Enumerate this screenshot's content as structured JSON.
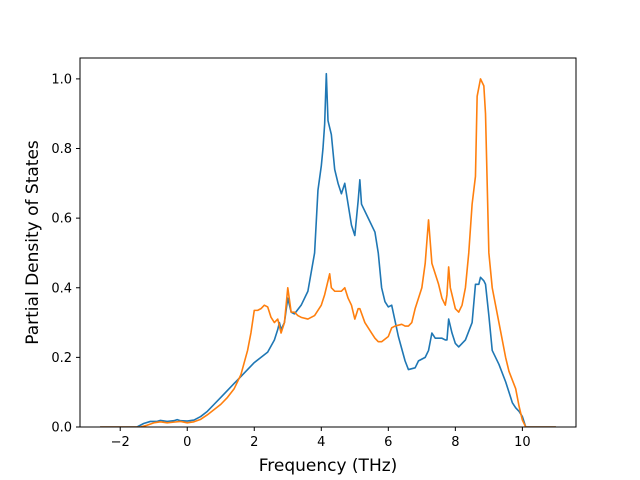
{
  "chart_data": {
    "type": "line",
    "title": "",
    "xlabel": "Frequency (THz)",
    "ylabel": "Partial Density of States",
    "xlim": [
      -3.2,
      11.6
    ],
    "ylim": [
      0,
      1.06
    ],
    "xticks": [
      -2,
      0,
      2,
      4,
      6,
      8,
      10
    ],
    "xtick_labels": [
      "−2",
      "0",
      "2",
      "4",
      "6",
      "8",
      "10"
    ],
    "yticks": [
      0.0,
      0.2,
      0.4,
      0.6,
      0.8,
      1.0
    ],
    "ytick_labels": [
      "0.0",
      "0.2",
      "0.4",
      "0.6",
      "0.8",
      "1.0"
    ],
    "grid": false,
    "legend": "none",
    "series": [
      {
        "color": "#1f77b4",
        "points": [
          [
            -2.6,
            0.0
          ],
          [
            -1.5,
            0.0
          ],
          [
            -1.3,
            0.01
          ],
          [
            -1.1,
            0.016
          ],
          [
            -0.9,
            0.016
          ],
          [
            -0.8,
            0.019
          ],
          [
            -0.6,
            0.016
          ],
          [
            -0.4,
            0.018
          ],
          [
            -0.3,
            0.021
          ],
          [
            -0.2,
            0.018
          ],
          [
            0.0,
            0.017
          ],
          [
            0.2,
            0.02
          ],
          [
            0.4,
            0.03
          ],
          [
            0.6,
            0.045
          ],
          [
            0.8,
            0.065
          ],
          [
            1.0,
            0.085
          ],
          [
            1.2,
            0.105
          ],
          [
            1.4,
            0.125
          ],
          [
            1.6,
            0.145
          ],
          [
            1.8,
            0.165
          ],
          [
            2.0,
            0.185
          ],
          [
            2.2,
            0.2
          ],
          [
            2.4,
            0.215
          ],
          [
            2.6,
            0.25
          ],
          [
            2.7,
            0.28
          ],
          [
            2.75,
            0.3
          ],
          [
            2.8,
            0.28
          ],
          [
            2.9,
            0.3
          ],
          [
            3.0,
            0.37
          ],
          [
            3.1,
            0.33
          ],
          [
            3.2,
            0.325
          ],
          [
            3.4,
            0.35
          ],
          [
            3.6,
            0.39
          ],
          [
            3.8,
            0.5
          ],
          [
            3.9,
            0.68
          ],
          [
            4.0,
            0.75
          ],
          [
            4.05,
            0.8
          ],
          [
            4.1,
            0.87
          ],
          [
            4.15,
            1.015
          ],
          [
            4.2,
            0.88
          ],
          [
            4.3,
            0.84
          ],
          [
            4.4,
            0.74
          ],
          [
            4.5,
            0.7
          ],
          [
            4.6,
            0.67
          ],
          [
            4.7,
            0.7
          ],
          [
            4.8,
            0.64
          ],
          [
            4.9,
            0.58
          ],
          [
            5.0,
            0.55
          ],
          [
            5.1,
            0.65
          ],
          [
            5.15,
            0.71
          ],
          [
            5.2,
            0.64
          ],
          [
            5.4,
            0.6
          ],
          [
            5.6,
            0.56
          ],
          [
            5.7,
            0.5
          ],
          [
            5.8,
            0.4
          ],
          [
            5.9,
            0.36
          ],
          [
            6.0,
            0.345
          ],
          [
            6.1,
            0.35
          ],
          [
            6.3,
            0.26
          ],
          [
            6.5,
            0.19
          ],
          [
            6.6,
            0.165
          ],
          [
            6.8,
            0.17
          ],
          [
            6.9,
            0.19
          ],
          [
            7.0,
            0.195
          ],
          [
            7.1,
            0.2
          ],
          [
            7.2,
            0.22
          ],
          [
            7.3,
            0.27
          ],
          [
            7.4,
            0.255
          ],
          [
            7.6,
            0.255
          ],
          [
            7.7,
            0.25
          ],
          [
            7.75,
            0.25
          ],
          [
            7.8,
            0.31
          ],
          [
            7.9,
            0.27
          ],
          [
            8.0,
            0.24
          ],
          [
            8.1,
            0.23
          ],
          [
            8.3,
            0.25
          ],
          [
            8.5,
            0.3
          ],
          [
            8.6,
            0.41
          ],
          [
            8.7,
            0.41
          ],
          [
            8.75,
            0.43
          ],
          [
            8.85,
            0.42
          ],
          [
            8.9,
            0.41
          ],
          [
            9.0,
            0.32
          ],
          [
            9.1,
            0.22
          ],
          [
            9.3,
            0.18
          ],
          [
            9.5,
            0.13
          ],
          [
            9.7,
            0.07
          ],
          [
            9.8,
            0.055
          ],
          [
            9.9,
            0.045
          ],
          [
            10.0,
            0.03
          ],
          [
            10.1,
            0.0
          ],
          [
            11.0,
            0.0
          ]
        ]
      },
      {
        "color": "#ff7f0e",
        "points": [
          [
            -2.6,
            0.0
          ],
          [
            -1.4,
            0.0
          ],
          [
            -1.2,
            0.005
          ],
          [
            -1.0,
            0.012
          ],
          [
            -0.8,
            0.015
          ],
          [
            -0.6,
            0.012
          ],
          [
            -0.4,
            0.014
          ],
          [
            -0.2,
            0.016
          ],
          [
            0.0,
            0.012
          ],
          [
            0.2,
            0.015
          ],
          [
            0.4,
            0.022
          ],
          [
            0.6,
            0.035
          ],
          [
            0.8,
            0.05
          ],
          [
            1.0,
            0.065
          ],
          [
            1.2,
            0.085
          ],
          [
            1.4,
            0.11
          ],
          [
            1.6,
            0.15
          ],
          [
            1.8,
            0.22
          ],
          [
            1.9,
            0.27
          ],
          [
            2.0,
            0.335
          ],
          [
            2.1,
            0.335
          ],
          [
            2.2,
            0.34
          ],
          [
            2.3,
            0.35
          ],
          [
            2.4,
            0.345
          ],
          [
            2.5,
            0.315
          ],
          [
            2.6,
            0.3
          ],
          [
            2.7,
            0.31
          ],
          [
            2.75,
            0.29
          ],
          [
            2.8,
            0.27
          ],
          [
            2.9,
            0.3
          ],
          [
            3.0,
            0.4
          ],
          [
            3.1,
            0.33
          ],
          [
            3.2,
            0.33
          ],
          [
            3.3,
            0.32
          ],
          [
            3.4,
            0.315
          ],
          [
            3.6,
            0.31
          ],
          [
            3.8,
            0.32
          ],
          [
            4.0,
            0.35
          ],
          [
            4.1,
            0.38
          ],
          [
            4.2,
            0.42
          ],
          [
            4.25,
            0.44
          ],
          [
            4.3,
            0.4
          ],
          [
            4.4,
            0.39
          ],
          [
            4.6,
            0.39
          ],
          [
            4.7,
            0.4
          ],
          [
            4.8,
            0.37
          ],
          [
            4.9,
            0.35
          ],
          [
            5.0,
            0.31
          ],
          [
            5.1,
            0.34
          ],
          [
            5.15,
            0.34
          ],
          [
            5.3,
            0.3
          ],
          [
            5.5,
            0.27
          ],
          [
            5.6,
            0.255
          ],
          [
            5.7,
            0.245
          ],
          [
            5.8,
            0.245
          ],
          [
            6.0,
            0.26
          ],
          [
            6.1,
            0.285
          ],
          [
            6.2,
            0.29
          ],
          [
            6.4,
            0.295
          ],
          [
            6.5,
            0.29
          ],
          [
            6.6,
            0.29
          ],
          [
            6.7,
            0.3
          ],
          [
            6.8,
            0.34
          ],
          [
            7.0,
            0.4
          ],
          [
            7.1,
            0.47
          ],
          [
            7.2,
            0.595
          ],
          [
            7.3,
            0.47
          ],
          [
            7.5,
            0.41
          ],
          [
            7.6,
            0.37
          ],
          [
            7.7,
            0.35
          ],
          [
            7.75,
            0.38
          ],
          [
            7.8,
            0.46
          ],
          [
            7.85,
            0.4
          ],
          [
            7.9,
            0.38
          ],
          [
            8.0,
            0.34
          ],
          [
            8.1,
            0.33
          ],
          [
            8.2,
            0.35
          ],
          [
            8.3,
            0.4
          ],
          [
            8.4,
            0.5
          ],
          [
            8.5,
            0.64
          ],
          [
            8.6,
            0.72
          ],
          [
            8.65,
            0.95
          ],
          [
            8.75,
            1.0
          ],
          [
            8.85,
            0.98
          ],
          [
            8.9,
            0.9
          ],
          [
            9.0,
            0.5
          ],
          [
            9.1,
            0.4
          ],
          [
            9.3,
            0.3
          ],
          [
            9.5,
            0.2
          ],
          [
            9.6,
            0.16
          ],
          [
            9.8,
            0.11
          ],
          [
            9.9,
            0.06
          ],
          [
            10.0,
            0.02
          ],
          [
            10.1,
            0.0
          ],
          [
            11.0,
            0.0
          ]
        ]
      }
    ]
  }
}
